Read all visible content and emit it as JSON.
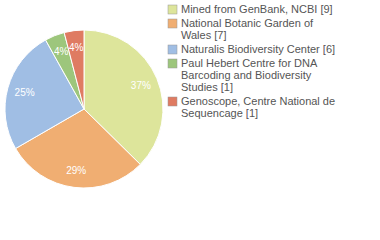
{
  "chart_data": {
    "type": "pie",
    "categories": [
      "Mined from GenBank, NCBI [9]",
      "National Botanic Garden of Wales [7]",
      "Naturalis Biodiversity Center [6]",
      "Paul Hebert Centre for DNA Barcoding and Biodiversity Studies [1]",
      "Genoscope, Centre National de Sequencage [1]"
    ],
    "values": [
      37,
      29,
      25,
      4,
      4
    ],
    "value_labels": [
      "37%",
      "29%",
      "25%",
      "4%",
      "4%"
    ],
    "colors": [
      "#dde59b",
      "#f0ae72",
      "#a0bee4",
      "#9dc67c",
      "#df7b62"
    ],
    "data_labels": true,
    "legend": "right"
  }
}
